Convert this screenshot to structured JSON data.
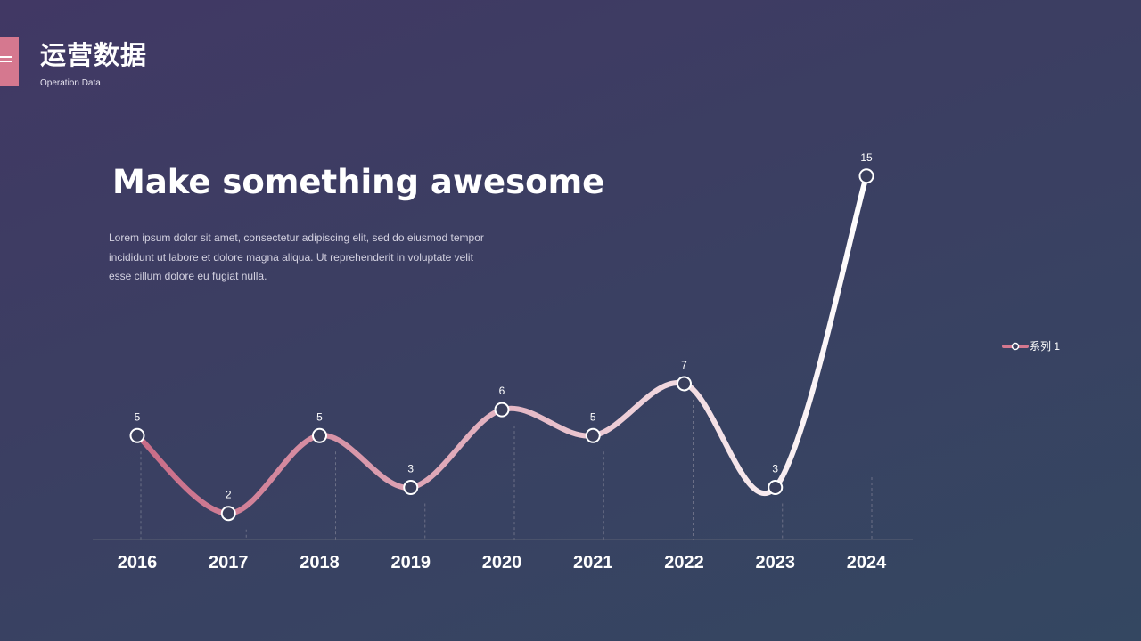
{
  "header": {
    "title": "运营数据",
    "subtitle": "Operation Data"
  },
  "content": {
    "headline": "Make something awesome",
    "body_lines": [
      "Lorem ipsum dolor sit amet, consectetur adipiscing elit, sed do eiusmod tempor",
      "incididunt  ut labore et dolore magna aliqua. Ut reprehenderit in voluptate velit",
      "esse cillum dolore eu fugiat nulla."
    ]
  },
  "colors": {
    "accent": "#d5788f",
    "line_start": "#c96b86",
    "line_end": "#ffffff"
  },
  "chart_data": {
    "type": "line",
    "smooth": true,
    "categories": [
      "2016",
      "2017",
      "2018",
      "2019",
      "2020",
      "2021",
      "2022",
      "2023",
      "2024"
    ],
    "series": [
      {
        "name": "系列 1",
        "values": [
          5,
          2,
          5,
          3,
          6,
          5,
          7,
          3,
          15
        ]
      }
    ],
    "data_labels": true,
    "legend_position": "right",
    "ylim": [
      0,
      15
    ]
  }
}
